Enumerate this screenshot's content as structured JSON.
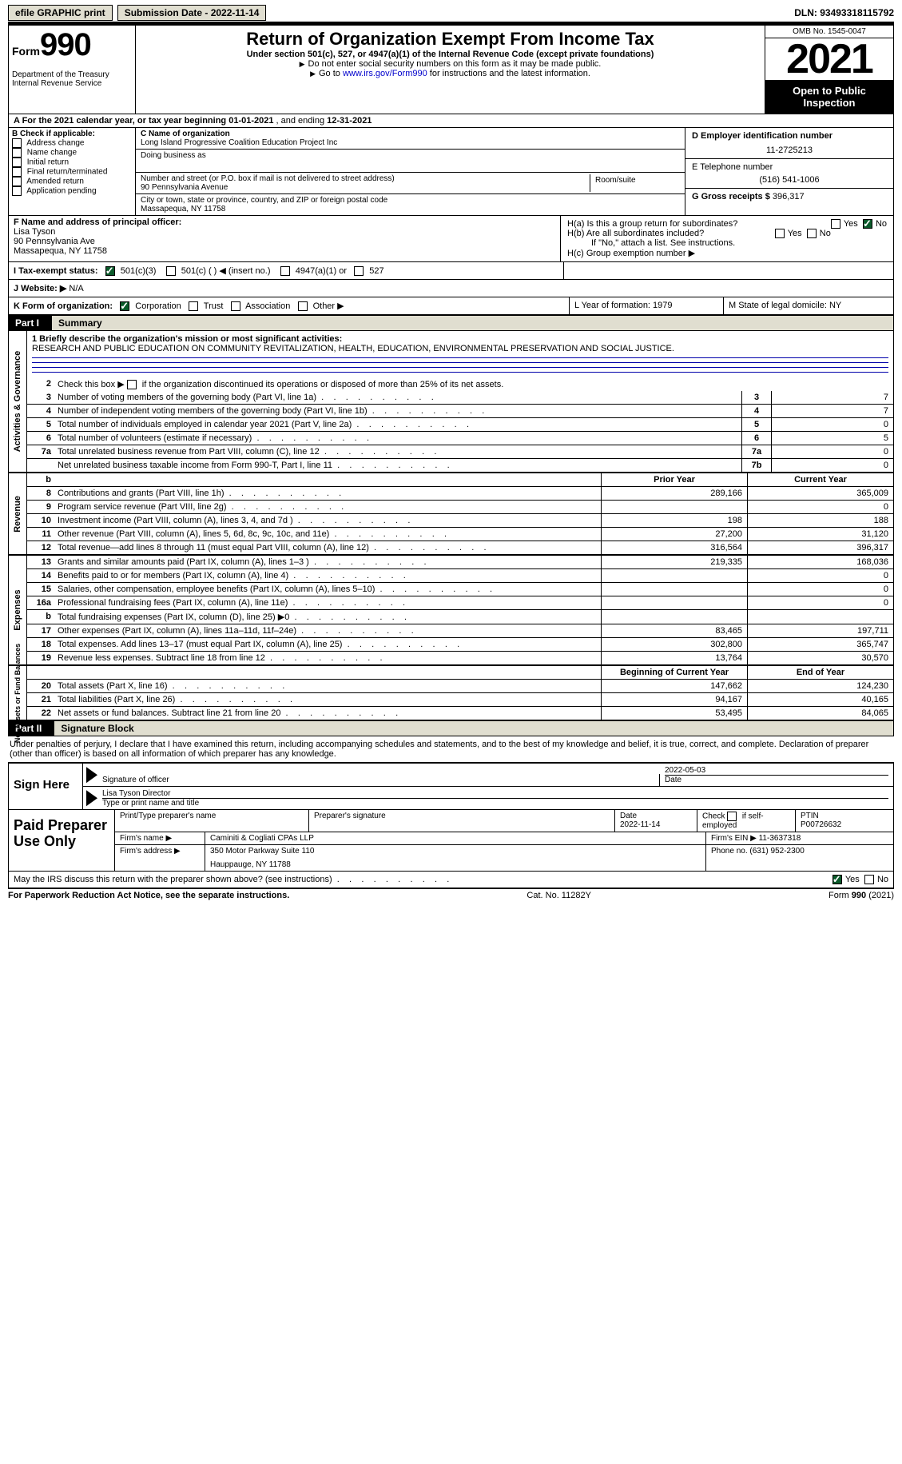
{
  "topbar": {
    "efile_btn": "efile GRAPHIC print",
    "submission_date_label": "Submission Date - 2022-11-14",
    "dln_label": "DLN: 93493318115792"
  },
  "header": {
    "form_word": "Form",
    "form_number": "990",
    "dept": "Department of the Treasury\nInternal Revenue Service",
    "title": "Return of Organization Exempt From Income Tax",
    "subtitle": "Under section 501(c), 527, or 4947(a)(1) of the Internal Revenue Code (except private foundations)",
    "note1": "Do not enter social security numbers on this form as it may be made public.",
    "note2_pre": "Go to ",
    "note2_link": "www.irs.gov/Form990",
    "note2_post": " for instructions and the latest information.",
    "omb": "OMB No. 1545-0047",
    "year": "2021",
    "open_pub": "Open to Public Inspection"
  },
  "rowA": {
    "text": "A For the 2021 calendar year, or tax year beginning ",
    "begin": "01-01-2021",
    "mid": "   , and ending ",
    "end": "12-31-2021"
  },
  "colB": {
    "label": "B Check if applicable:",
    "opts": [
      "Address change",
      "Name change",
      "Initial return",
      "Final return/terminated",
      "Amended return",
      "Application pending"
    ]
  },
  "colC": {
    "name_label": "C Name of organization",
    "name": "Long Island Progressive Coalition Education Project Inc",
    "dba_label": "Doing business as",
    "street_label": "Number and street (or P.O. box if mail is not delivered to street address)",
    "room_label": "Room/suite",
    "street": "90 Pennsylvania Avenue",
    "city_label": "City or town, state or province, country, and ZIP or foreign postal code",
    "city": "Massapequa, NY  11758"
  },
  "colD": {
    "ein_label": "D Employer identification number",
    "ein": "11-2725213",
    "phone_label": "E Telephone number",
    "phone": "(516) 541-1006",
    "gross_label": "G Gross receipts $ ",
    "gross": "396,317"
  },
  "colF": {
    "label": "F  Name and address of principal officer:",
    "name": "Lisa Tyson",
    "street": "90 Pennsylvania Ave",
    "city": "Massapequa, NY  11758"
  },
  "colH": {
    "ha": "H(a)  Is this a group return for subordinates?",
    "hb": "H(b)  Are all subordinates included?",
    "hb_note": "If \"No,\" attach a list. See instructions.",
    "hc": "H(c)  Group exemption number ▶",
    "yes": "Yes",
    "no": "No"
  },
  "rowI": {
    "label": "I   Tax-exempt status:",
    "o1": "501(c)(3)",
    "o2": "501(c) (   ) ◀ (insert no.)",
    "o3": "4947(a)(1) or",
    "o4": "527"
  },
  "rowJ": {
    "label": "J   Website: ▶",
    "value": "  N/A"
  },
  "rowK": {
    "label": "K Form of organization:",
    "o1": "Corporation",
    "o2": "Trust",
    "o3": "Association",
    "o4": "Other ▶",
    "L": "L Year of formation: 1979",
    "M": "M State of legal domicile: NY"
  },
  "part1": {
    "hdr": "Part I",
    "title": "Summary"
  },
  "summary": {
    "sec1_label": "Activities & Governance",
    "line1_label": "1  Briefly describe the organization's mission or most significant activities:",
    "mission": "RESEARCH AND PUBLIC EDUCATION ON COMMUNITY REVITALIZATION, HEALTH, EDUCATION, ENVIRONMENTAL PRESERVATION AND SOCIAL JUSTICE.",
    "line2": "Check this box ▶         if the organization discontinued its operations or disposed of more than 25% of its net assets.",
    "rows_a": [
      {
        "n": "3",
        "d": "Number of voting members of the governing body (Part VI, line 1a)",
        "b": "3",
        "v": "7"
      },
      {
        "n": "4",
        "d": "Number of independent voting members of the governing body (Part VI, line 1b)",
        "b": "4",
        "v": "7"
      },
      {
        "n": "5",
        "d": "Total number of individuals employed in calendar year 2021 (Part V, line 2a)",
        "b": "5",
        "v": "0"
      },
      {
        "n": "6",
        "d": "Total number of volunteers (estimate if necessary)",
        "b": "6",
        "v": "5"
      },
      {
        "n": "7a",
        "d": "Total unrelated business revenue from Part VIII, column (C), line 12",
        "b": "7a",
        "v": "0"
      },
      {
        "n": " ",
        "d": "Net unrelated business taxable income from Form 990-T, Part I, line 11",
        "b": "7b",
        "v": "0"
      }
    ],
    "py_label": "Prior Year",
    "cy_label": "Current Year",
    "sec2_label": "Revenue",
    "rows_rev": [
      {
        "n": "8",
        "d": "Contributions and grants (Part VIII, line 1h)",
        "py": "289,166",
        "cy": "365,009"
      },
      {
        "n": "9",
        "d": "Program service revenue (Part VIII, line 2g)",
        "py": "",
        "cy": "0"
      },
      {
        "n": "10",
        "d": "Investment income (Part VIII, column (A), lines 3, 4, and 7d )",
        "py": "198",
        "cy": "188"
      },
      {
        "n": "11",
        "d": "Other revenue (Part VIII, column (A), lines 5, 6d, 8c, 9c, 10c, and 11e)",
        "py": "27,200",
        "cy": "31,120"
      },
      {
        "n": "12",
        "d": "Total revenue—add lines 8 through 11 (must equal Part VIII, column (A), line 12)",
        "py": "316,564",
        "cy": "396,317"
      }
    ],
    "sec3_label": "Expenses",
    "rows_exp": [
      {
        "n": "13",
        "d": "Grants and similar amounts paid (Part IX, column (A), lines 1–3 )",
        "py": "219,335",
        "cy": "168,036"
      },
      {
        "n": "14",
        "d": "Benefits paid to or for members (Part IX, column (A), line 4)",
        "py": "",
        "cy": "0"
      },
      {
        "n": "15",
        "d": "Salaries, other compensation, employee benefits (Part IX, column (A), lines 5–10)",
        "py": "",
        "cy": "0"
      },
      {
        "n": "16a",
        "d": "Professional fundraising fees (Part IX, column (A), line 11e)",
        "py": "",
        "cy": "0"
      },
      {
        "n": "b",
        "d": "Total fundraising expenses (Part IX, column (D), line 25) ▶0",
        "py": "SHADE",
        "cy": "SHADE"
      },
      {
        "n": "17",
        "d": "Other expenses (Part IX, column (A), lines 11a–11d, 11f–24e)",
        "py": "83,465",
        "cy": "197,711"
      },
      {
        "n": "18",
        "d": "Total expenses. Add lines 13–17 (must equal Part IX, column (A), line 25)",
        "py": "302,800",
        "cy": "365,747"
      },
      {
        "n": "19",
        "d": "Revenue less expenses. Subtract line 18 from line 12",
        "py": "13,764",
        "cy": "30,570"
      }
    ],
    "sec4_label": "Net Assets or Fund Balances",
    "boy_label": "Beginning of Current Year",
    "eoy_label": "End of Year",
    "rows_net": [
      {
        "n": "20",
        "d": "Total assets (Part X, line 16)",
        "py": "147,662",
        "cy": "124,230"
      },
      {
        "n": "21",
        "d": "Total liabilities (Part X, line 26)",
        "py": "94,167",
        "cy": "40,165"
      },
      {
        "n": "22",
        "d": "Net assets or fund balances. Subtract line 21 from line 20",
        "py": "53,495",
        "cy": "84,065"
      }
    ]
  },
  "part2": {
    "hdr": "Part II",
    "title": "Signature Block"
  },
  "sig": {
    "decl": "Under penalties of perjury, I declare that I have examined this return, including accompanying schedules and statements, and to the best of my knowledge and belief, it is true, correct, and complete. Declaration of preparer (other than officer) is based on all information of which preparer has any knowledge.",
    "sign_here": "Sign Here",
    "sig_officer": "Signature of officer",
    "sig_date": "2022-05-03",
    "date_label": "Date",
    "name_title": "Lisa Tyson Director",
    "name_label": "Type or print name and title"
  },
  "prep": {
    "label": "Paid Preparer Use Only",
    "h1": "Print/Type preparer's name",
    "h2": "Preparer's signature",
    "h3": "Date",
    "date": "2022-11-14",
    "h4": "Check         if self-employed",
    "h5": "PTIN",
    "ptin": "P00726632",
    "firm_name_l": "Firm's name     ▶",
    "firm_name": "Caminiti & Cogliati CPAs LLP",
    "firm_ein_l": "Firm's EIN ▶",
    "firm_ein": "11-3637318",
    "firm_addr_l": "Firm's address ▶",
    "firm_addr": "350 Motor Parkway Suite 110",
    "firm_city": "Hauppauge, NY  11788",
    "phone_l": "Phone no.",
    "phone": "(631) 952-2300"
  },
  "footer": {
    "discuss": "May the IRS discuss this return with the preparer shown above? (see instructions)",
    "yes": "Yes",
    "no": "No",
    "pra": "For Paperwork Reduction Act Notice, see the separate instructions.",
    "cat": "Cat. No. 11282Y",
    "form": "Form 990 (2021)"
  }
}
